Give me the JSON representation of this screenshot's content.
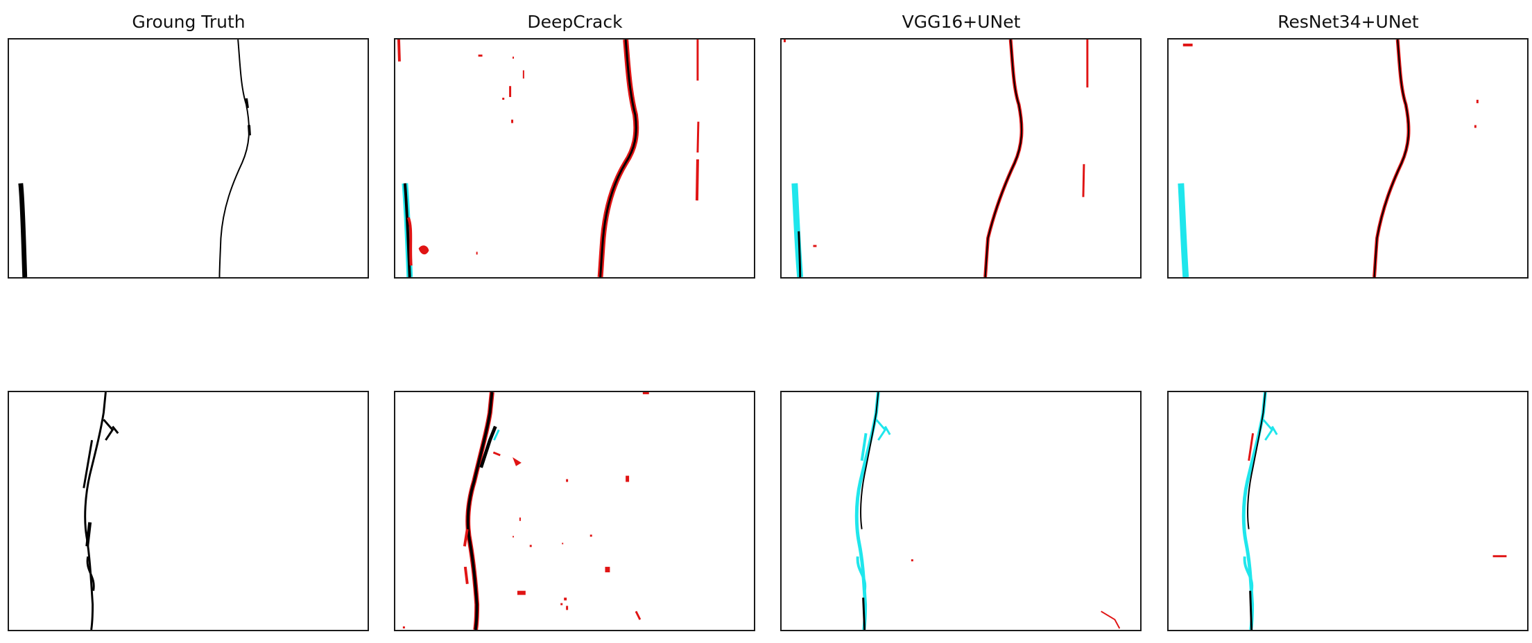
{
  "figure": {
    "columns": [
      {
        "title": "Groung Truth"
      },
      {
        "title": "DeepCrack"
      },
      {
        "title": "VGG16+UNet"
      },
      {
        "title": "ResNet34+UNet"
      }
    ]
  },
  "colors": {
    "background": "#ffffff",
    "ground_truth_crack": "#000000",
    "true_positive": "#000000",
    "false_positive": "#e01414",
    "false_negative": "#1fe6ec",
    "panel_border": "#1a1a1a"
  }
}
